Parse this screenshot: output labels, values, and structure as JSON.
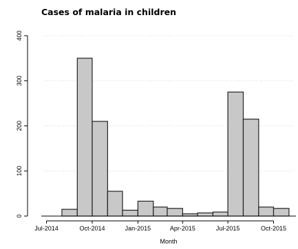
{
  "chart_data": {
    "type": "bar",
    "title": "Cases of malaria  in children",
    "xlabel": "Month",
    "ylabel": "",
    "ylim": [
      0,
      400
    ],
    "yticks": [
      0,
      100,
      200,
      300,
      400
    ],
    "xlim": [
      "2014-06-15",
      "2015-11-15"
    ],
    "xticks": [
      {
        "date": "2014-07-01",
        "label": "Jul-2014"
      },
      {
        "date": "2014-10-01",
        "label": "Oct-2014"
      },
      {
        "date": "2015-01-01",
        "label": "Jan-2015"
      },
      {
        "date": "2015-04-01",
        "label": "Apr-2015"
      },
      {
        "date": "2015-07-01",
        "label": "Jul-2015"
      },
      {
        "date": "2015-10-01",
        "label": "Oct-2015"
      }
    ],
    "categories": [
      "2014-08",
      "2014-09",
      "2014-10",
      "2014-11",
      "2014-12",
      "2015-01",
      "2015-02",
      "2015-03",
      "2015-04",
      "2015-05",
      "2015-06",
      "2015-07",
      "2015-08",
      "2015-09",
      "2015-10"
    ],
    "values": [
      15,
      350,
      210,
      55,
      13,
      33,
      20,
      17,
      5,
      7,
      9,
      275,
      215,
      20,
      17
    ],
    "bar_color": "#c8c8c8",
    "edge_color": "#222222",
    "grid": "dotted-horizontal",
    "grid_color": "#d0d0d0"
  }
}
